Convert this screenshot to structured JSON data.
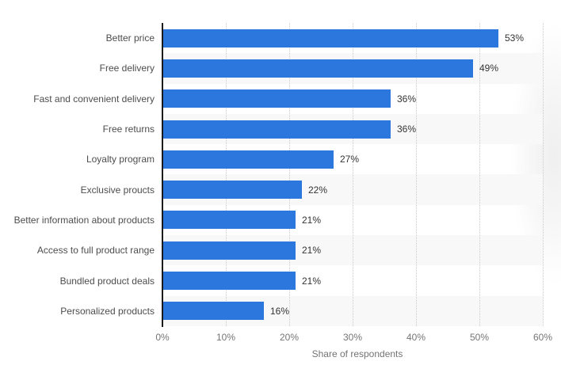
{
  "chart_data": {
    "type": "bar",
    "orientation": "horizontal",
    "title": "",
    "xlabel": "Share of respondents",
    "ylabel": "",
    "categories": [
      "Better price",
      "Free delivery",
      "Fast and convenient delivery",
      "Free returns",
      "Loyalty program",
      "Exclusive proucts",
      "Better information about products",
      "Access to full product range",
      "Bundled product deals",
      "Personalized products"
    ],
    "values": [
      53,
      49,
      36,
      36,
      27,
      22,
      21,
      21,
      21,
      16
    ],
    "value_labels": [
      "53%",
      "49%",
      "36%",
      "36%",
      "27%",
      "22%",
      "21%",
      "21%",
      "21%",
      "16%"
    ],
    "xlim": [
      0,
      60
    ],
    "x_tick_step": 10,
    "x_ticks": [
      "0%",
      "10%",
      "20%",
      "30%",
      "40%",
      "50%",
      "60%"
    ],
    "grid": "vertical-dotted",
    "legend": "none",
    "colors": {
      "bar": "#2b77dd",
      "row_band": "#f8f8f8",
      "gridline": "#cccccc",
      "axis_line": "#1b1b1b",
      "category_text": "#4d4d4d",
      "value_text": "#333333",
      "tick_text": "#757575",
      "axis_title_text": "#737373"
    }
  }
}
